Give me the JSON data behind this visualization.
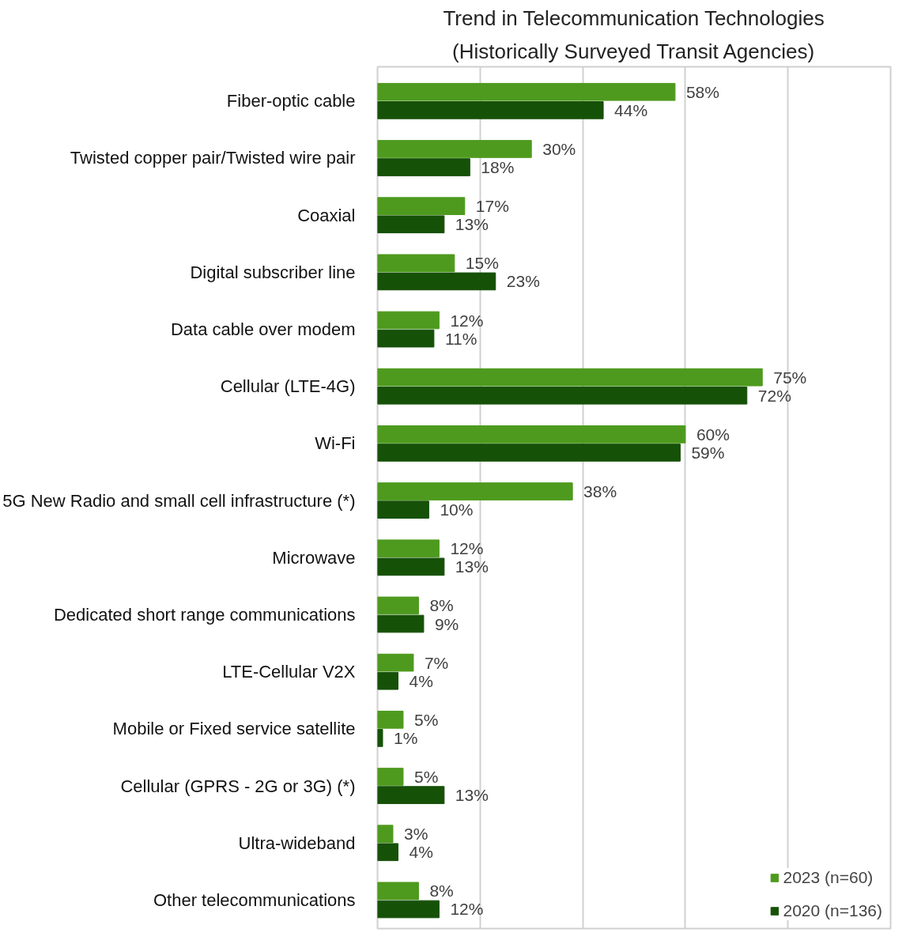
{
  "chart_data": {
    "type": "bar",
    "orientation": "horizontal",
    "title": "Trend in Telecommunication Technologies",
    "subtitle": "(Historically Surveyed Transit Agencies)",
    "categories": [
      "Fiber-optic cable",
      "Twisted copper pair/Twisted wire pair",
      "Coaxial",
      "Digital subscriber line",
      "Data cable over modem",
      "Cellular (LTE-4G)",
      "Wi-Fi",
      "5G New Radio and small cell infrastructure (*)",
      "Microwave",
      "Dedicated short range communications",
      "LTE-Cellular V2X",
      "Mobile or Fixed service satellite",
      "Cellular (GPRS - 2G or 3G) (*)",
      "Ultra-wideband",
      "Other telecommunications"
    ],
    "series": [
      {
        "name": "2023 (n=60)",
        "color": "#4e9a1e",
        "values": [
          58,
          30,
          17,
          15,
          12,
          75,
          60,
          38,
          12,
          8,
          7,
          5,
          5,
          3,
          8
        ],
        "value_labels": [
          "58%",
          "30%",
          "17%",
          "15%",
          "12%",
          "75%",
          "60%",
          "38%",
          "12%",
          "8%",
          "7%",
          "5%",
          "5%",
          "3%",
          "8%"
        ]
      },
      {
        "name": "2020 (n=136)",
        "color": "#165108",
        "values": [
          44,
          18,
          13,
          23,
          11,
          72,
          59,
          10,
          13,
          9,
          4,
          1,
          13,
          4,
          12
        ],
        "value_labels": [
          "44%",
          "18%",
          "13%",
          "23%",
          "11%",
          "72%",
          "59%",
          "10%",
          "13%",
          "9%",
          "4%",
          "1%",
          "13%",
          "4%",
          "12%"
        ]
      }
    ],
    "xlim": [
      0,
      100
    ],
    "xticks": [
      {
        "value": 20,
        "label": null
      },
      {
        "value": 40,
        "label": null
      },
      {
        "value": 60,
        "label": null
      },
      {
        "value": 80,
        "label": null
      }
    ],
    "tick_labels": "y",
    "grid": "x",
    "legend": "bottom right"
  }
}
